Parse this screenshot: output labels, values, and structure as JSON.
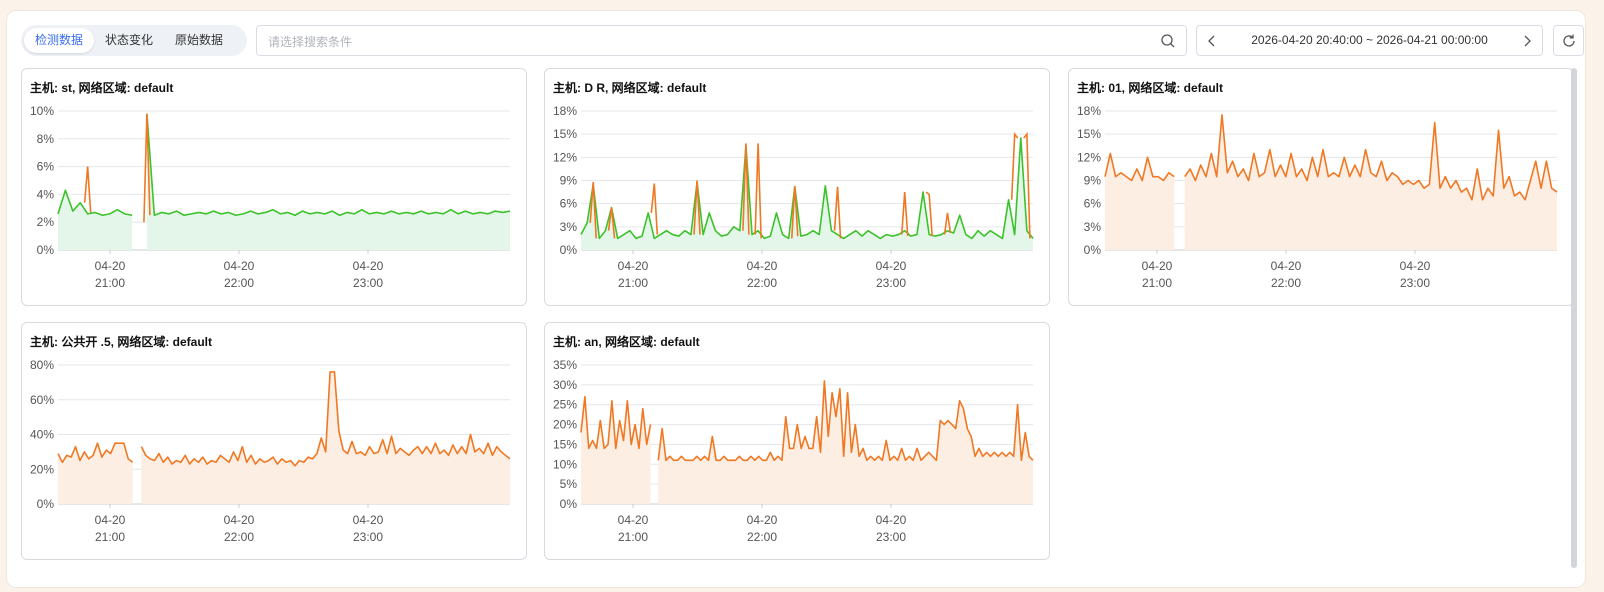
{
  "tabs": [
    {
      "label": "检测数据",
      "active": true
    },
    {
      "label": "状态变化",
      "active": false
    },
    {
      "label": "原始数据",
      "active": false
    }
  ],
  "search": {
    "placeholder": "请选择搜索条件",
    "value": ""
  },
  "time_range": {
    "label": "2026-04-20 20:40:00 ~ 2026-04-21 00:00:00"
  },
  "icons": {
    "search": "search-icon",
    "prev": "chevron-left-icon",
    "next": "chevron-right-icon",
    "refresh": "refresh-icon"
  },
  "colors": {
    "accent": "#3a6df0",
    "orange": "#f07823",
    "green": "#3cc22a",
    "orange_fill": "#fdeee4",
    "green_fill": "#e4f6ea"
  },
  "chart_data": [
    {
      "type": "line",
      "title": "主机: st, 网络区域: default",
      "y_ticks": [
        "10%",
        "8%",
        "6%",
        "4%",
        "2%",
        "0%"
      ],
      "ylim": [
        0,
        10
      ],
      "x_ticks": [
        [
          "04-20",
          "21:00"
        ],
        [
          "04-20",
          "22:00"
        ],
        [
          "04-20",
          "23:00"
        ]
      ],
      "series": [
        {
          "color": "green",
          "values": [
            2.6,
            4.3,
            2.8,
            3.4,
            2.6,
            2.7,
            2.5,
            2.6,
            2.9,
            2.6,
            2.5,
            null,
            9.8,
            2.5,
            2.7,
            2.6,
            2.8,
            2.5,
            2.6,
            2.7,
            2.6,
            2.8,
            2.6,
            2.7,
            2.5,
            2.6,
            2.8,
            2.6,
            2.7,
            2.9,
            2.6,
            2.7,
            2.5,
            2.8,
            2.6,
            2.7,
            2.6,
            2.8,
            2.5,
            2.7,
            2.6,
            2.9,
            2.6,
            2.7,
            2.6,
            2.8,
            2.6,
            2.7,
            2.6,
            2.8,
            2.6,
            2.7,
            2.6,
            2.9,
            2.6,
            2.8,
            2.6,
            2.7,
            2.6,
            2.8,
            2.7,
            2.8
          ],
          "orange_spikes": [
            [
              4,
              6.0
            ],
            [
              12,
              9.8
            ]
          ]
        }
      ]
    },
    {
      "type": "line",
      "title": "主机: D R, 网络区域: default",
      "y_ticks": [
        "18%",
        "15%",
        "12%",
        "9%",
        "6%",
        "3%",
        "0%"
      ],
      "ylim": [
        0,
        18
      ],
      "x_ticks": [
        [
          "04-20",
          "21:00"
        ],
        [
          "04-20",
          "22:00"
        ],
        [
          "04-20",
          "23:00"
        ]
      ],
      "series": [
        {
          "color": "green",
          "values": [
            2,
            3.5,
            8.5,
            1.5,
            2.5,
            5.5,
            1.5,
            2,
            2.5,
            1.5,
            1.8,
            4.8,
            1.5,
            2,
            2.5,
            2,
            1.8,
            2.5,
            2,
            8.8,
            2,
            4.8,
            2.5,
            1.8,
            2,
            3,
            2.5,
            13.5,
            2,
            2.5,
            1.5,
            1.8,
            4.8,
            2,
            1.5,
            8.2,
            1.8,
            2,
            2.5,
            2,
            8.3,
            2.5,
            2,
            1.5,
            2,
            2.5,
            1.8,
            2.5,
            2,
            1.5,
            2,
            1.8,
            2,
            2.5,
            1.8,
            2,
            7.5,
            2,
            1.8,
            2,
            2.5,
            2.2,
            4.5,
            2,
            1.5,
            2.5,
            1.8,
            2.5,
            2,
            1.5,
            6.5,
            2,
            14.5,
            2.5,
            1.5
          ],
          "orange_spikes": [
            [
              2,
              8.8
            ],
            [
              5,
              5.5
            ],
            [
              12,
              8.6
            ],
            [
              19,
              9
            ],
            [
              27,
              13.8
            ],
            [
              29,
              13.8
            ],
            [
              35,
              8.3
            ],
            [
              42,
              8.2
            ],
            [
              53,
              7.5
            ],
            [
              57,
              7.2
            ],
            [
              60,
              4.8
            ],
            [
              71,
              15
            ],
            [
              73,
              15
            ]
          ]
        }
      ]
    },
    {
      "type": "area",
      "title": "主机: 01, 网络区域: default",
      "y_ticks": [
        "18%",
        "15%",
        "12%",
        "9%",
        "6%",
        "3%",
        "0%"
      ],
      "ylim": [
        0,
        18
      ],
      "x_ticks": [
        [
          "04-20",
          "21:00"
        ],
        [
          "04-20",
          "22:00"
        ],
        [
          "04-20",
          "23:00"
        ]
      ],
      "series": [
        {
          "color": "orange",
          "values": [
            9.5,
            12.5,
            9.5,
            10,
            9.5,
            9,
            10.5,
            9,
            12,
            9.5,
            9.5,
            9,
            10,
            9.5,
            null,
            9.5,
            10.5,
            9,
            11,
            9.5,
            12.5,
            9.5,
            17.5,
            10,
            11.5,
            9.5,
            10.5,
            9,
            12.5,
            9.5,
            10,
            13,
            9.5,
            11,
            9.5,
            12.5,
            9.5,
            10.5,
            9,
            12,
            9.5,
            13,
            9.5,
            10,
            9.5,
            12,
            9.5,
            11,
            9.5,
            13,
            10,
            9.5,
            11.5,
            9,
            10,
            9.5,
            8.5,
            9,
            8.5,
            9,
            8,
            8.5,
            16.5,
            8,
            9.5,
            8,
            9,
            7.5,
            8,
            6.5,
            10.5,
            6.5,
            8,
            7,
            15.5,
            8,
            9.5,
            7,
            7.5,
            6.5,
            9,
            11.5,
            8,
            11.5,
            8,
            7.5
          ]
        }
      ]
    },
    {
      "type": "area",
      "title": "主机: 公共开 .5, 网络区域: default",
      "y_ticks": [
        "80%",
        "60%",
        "40%",
        "20%",
        "0%"
      ],
      "ylim": [
        0,
        80
      ],
      "x_ticks": [
        [
          "04-20",
          "21:00"
        ],
        [
          "04-20",
          "22:00"
        ],
        [
          "04-20",
          "23:00"
        ]
      ],
      "series": [
        {
          "color": "orange",
          "values": [
            29,
            24,
            28,
            27,
            33,
            25,
            30,
            26,
            28,
            35,
            27,
            31,
            29,
            35,
            35,
            35,
            26,
            24,
            null,
            33,
            28,
            26,
            25,
            29,
            24,
            27,
            23,
            25,
            24,
            28,
            23,
            26,
            24,
            27,
            23,
            25,
            24,
            28,
            26,
            24,
            30,
            25,
            33,
            24,
            28,
            23,
            26,
            24,
            25,
            27,
            23,
            26,
            24,
            25,
            22,
            25,
            24,
            27,
            26,
            29,
            38,
            30,
            76,
            76,
            42,
            31,
            29,
            36,
            29,
            30,
            28,
            33,
            29,
            30,
            37,
            29,
            39,
            29,
            32,
            30,
            28,
            31,
            33,
            29,
            33,
            29,
            35,
            29,
            31,
            28,
            34,
            29,
            33,
            29,
            40,
            30,
            32,
            29,
            35,
            28,
            33,
            30,
            28,
            26
          ]
        }
      ]
    },
    {
      "type": "area",
      "title": "主机: an, 网络区域: default",
      "y_ticks": [
        "35%",
        "30%",
        "25%",
        "20%",
        "15%",
        "10%",
        "5%",
        "0%"
      ],
      "ylim": [
        0,
        35
      ],
      "x_ticks": [
        [
          "04-20",
          "21:00"
        ],
        [
          "04-20",
          "22:00"
        ],
        [
          "04-20",
          "23:00"
        ]
      ],
      "series": [
        {
          "color": "orange",
          "values": [
            18,
            27,
            14,
            16,
            14,
            21,
            14,
            15,
            26,
            14,
            21,
            16,
            26,
            15,
            20,
            14,
            24,
            15,
            20,
            null,
            11,
            19,
            11,
            12,
            11,
            11,
            12,
            11,
            11,
            11,
            12,
            11,
            12,
            11,
            17,
            11,
            11,
            12,
            11,
            11,
            11,
            12,
            11,
            11,
            12,
            11,
            12,
            11,
            11,
            13,
            11,
            12,
            11,
            22,
            14,
            14,
            20,
            14,
            17,
            14,
            14,
            22,
            13,
            31,
            17,
            28,
            22,
            29,
            12,
            28,
            13,
            20,
            12,
            14,
            11,
            12,
            11,
            12,
            11,
            16,
            11,
            12,
            11,
            14,
            11,
            12,
            11,
            14,
            11,
            12,
            13,
            12,
            11,
            21,
            20,
            21,
            20,
            19,
            26,
            24,
            19,
            17,
            12,
            14,
            12,
            13,
            12,
            13,
            12,
            13,
            12,
            13,
            12,
            25,
            11,
            18,
            12,
            11
          ]
        }
      ]
    }
  ]
}
